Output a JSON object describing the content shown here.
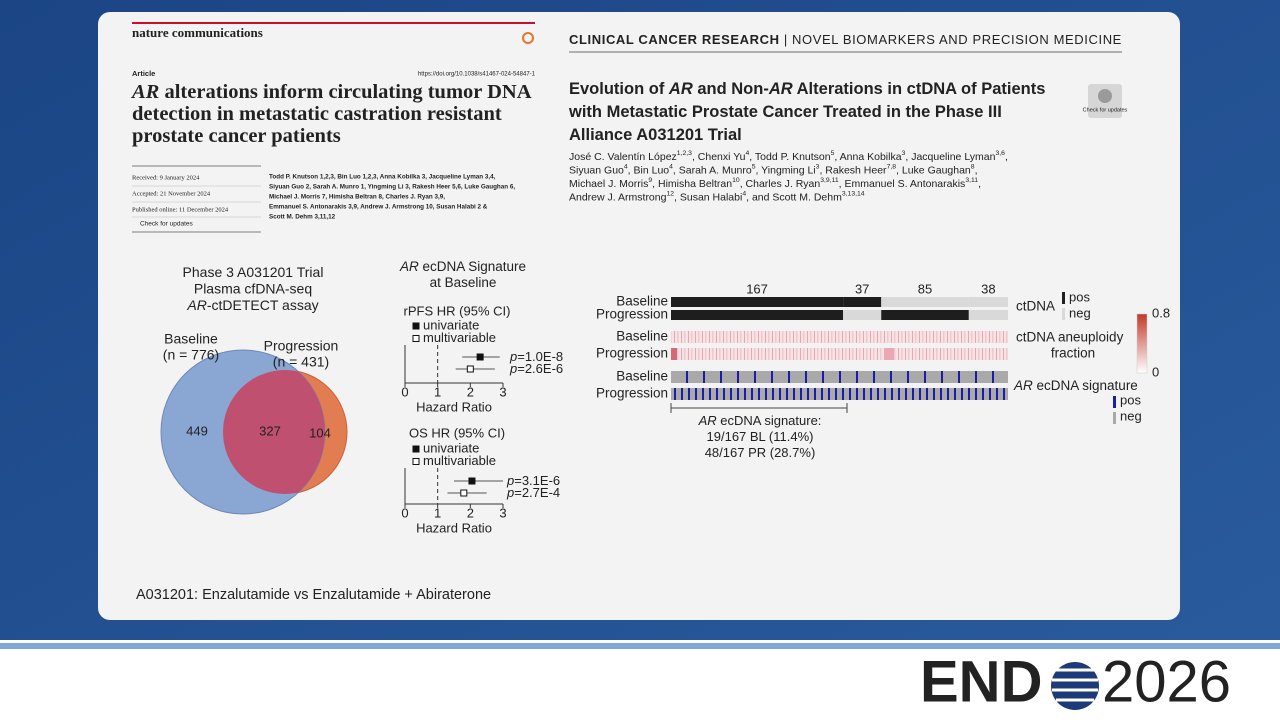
{
  "slide": {
    "left_paper": {
      "journal": "nature communications",
      "article_type": "Article",
      "doi": "https://doi.org/10.1038/s41467-024-54847-1",
      "title": [
        [
          {
            "t": "AR",
            "i": true
          },
          {
            "t": " alterations inform circulating tumor DNA"
          }
        ],
        [
          {
            "t": "detection in metastatic castration resistant"
          }
        ],
        [
          {
            "t": "prostate cancer patients"
          }
        ]
      ],
      "dates": [
        "Received: 9 January 2024",
        "Accepted: 21 November 2024",
        "Published online: 11 December 2024"
      ],
      "check": "Check for updates",
      "authors": [
        "Todd P. Knutson 1,2,3, Bin Luo 1,2,3, Anna Kobilka 3, Jacqueline Lyman 3,4,",
        "Siyuan Guo 2, Sarah A. Munro 1, Yingming Li 3, Rakesh Heer 5,6, Luke Gaughan 6,",
        "Michael J. Morris 7, Himisha Beltran 8, Charles J. Ryan 3,9,",
        "Emmanuel S. Antonarakis 3,9, Andrew J. Armstrong 10, Susan Halabi 2 &",
        "Scott M. Dehm 3,11,12"
      ]
    },
    "right_paper": {
      "header": [
        {
          "t": "CLINICAL CANCER RESEARCH",
          "b": true
        },
        {
          "t": "  |  NOVEL BIOMARKERS AND PRECISION MEDICINE"
        }
      ],
      "title": [
        [
          {
            "t": "Evolution of "
          },
          {
            "t": "AR",
            "i": true
          },
          {
            "t": " and Non-"
          },
          {
            "t": "AR",
            "i": true
          },
          {
            "t": " Alterations in ctDNA of Patients"
          }
        ],
        [
          {
            "t": "with Metastatic Prostate Cancer Treated in the Phase III"
          }
        ],
        [
          {
            "t": "Alliance A031201 Trial"
          }
        ]
      ],
      "check": "Check for updates",
      "authors": [
        [
          {
            "t": "José C. Valentín López",
            "sup": "1,2,3"
          },
          {
            "t": ", Chenxi Yu",
            "sup": "4"
          },
          {
            "t": ", Todd P. Knutson",
            "sup": "5"
          },
          {
            "t": ", Anna Kobilka",
            "sup": "3"
          },
          {
            "t": ", Jacqueline Lyman",
            "sup": "3,6"
          },
          {
            "t": ","
          }
        ],
        [
          {
            "t": "Siyuan Guo",
            "sup": "4"
          },
          {
            "t": ", Bin Luo",
            "sup": "4"
          },
          {
            "t": ", Sarah A. Munro",
            "sup": "5"
          },
          {
            "t": ", Yingming Li",
            "sup": "3"
          },
          {
            "t": ", Rakesh Heer",
            "sup": "7,8"
          },
          {
            "t": ", Luke Gaughan",
            "sup": "8"
          },
          {
            "t": ","
          }
        ],
        [
          {
            "t": "Michael J. Morris",
            "sup": "9"
          },
          {
            "t": ", Himisha Beltran",
            "sup": "10"
          },
          {
            "t": ", Charles J. Ryan",
            "sup": "3,9,11"
          },
          {
            "t": ", Emmanuel S. Antonarakis",
            "sup": "3,11"
          },
          {
            "t": ","
          }
        ],
        [
          {
            "t": "Andrew J. Armstrong",
            "sup": "12"
          },
          {
            "t": ", Susan Halabi",
            "sup": "4"
          },
          {
            "t": ", and Scott M. Dehm",
            "sup": "3,13,14"
          }
        ]
      ]
    },
    "venn": {
      "title": [
        [
          {
            "t": "Phase 3 A031201 Trial"
          }
        ],
        [
          {
            "t": "Plasma cfDNA-seq"
          }
        ],
        [
          {
            "t": "AR",
            "i": true
          },
          {
            "t": "-ctDETECT assay"
          }
        ]
      ],
      "sets": [
        {
          "name": "Baseline",
          "n": "(n = 776)"
        },
        {
          "name": "Progression",
          "n": "(n = 431)"
        }
      ],
      "only_baseline": 449,
      "both": 327,
      "only_progression": 104
    },
    "forest": {
      "title": [
        [
          {
            "t": "AR",
            "i": true
          },
          {
            "t": " ecDNA Signature"
          }
        ],
        [
          {
            "t": "at Baseline"
          }
        ]
      ],
      "plots": [
        {
          "title": "rPFS HR (95% CI)",
          "legend": [
            "univariate",
            "multivariable"
          ],
          "xlim": [
            0,
            3
          ],
          "xticks": [
            0,
            1,
            2,
            3
          ],
          "reference": 1,
          "axis_label": "Hazard Ratio",
          "rows": [
            {
              "hr": 2.3,
              "lo": 1.75,
              "hi": 2.9,
              "p": [
                {
                  "t": "p",
                  "i": true
                },
                {
                  "t": "=1.0E-8"
                }
              ]
            },
            {
              "hr": 2.0,
              "lo": 1.55,
              "hi": 2.75,
              "p": [
                {
                  "t": "p",
                  "i": true
                },
                {
                  "t": "=2.6E-6"
                }
              ]
            }
          ]
        },
        {
          "title": "OS HR (95% CI)",
          "legend": [
            "univariate",
            "multivariable"
          ],
          "xlim": [
            0,
            3
          ],
          "xticks": [
            0,
            1,
            2,
            3
          ],
          "reference": 1,
          "axis_label": "Hazard Ratio",
          "rows": [
            {
              "hr": 2.05,
              "lo": 1.5,
              "hi": 3.0,
              "p": [
                {
                  "t": "p",
                  "i": true
                },
                {
                  "t": "=3.1E-6"
                }
              ]
            },
            {
              "hr": 1.8,
              "lo": 1.3,
              "hi": 2.5,
              "p": [
                {
                  "t": "p",
                  "i": true
                },
                {
                  "t": "=2.7E-4"
                }
              ]
            }
          ]
        }
      ]
    },
    "heatmap": {
      "groups": [
        167,
        37,
        85,
        38
      ],
      "ctdna": {
        "label": "ctDNA",
        "rows": [
          "Baseline",
          "Progression"
        ],
        "status": [
          [
            1,
            1,
            0,
            0
          ],
          [
            1,
            0,
            1,
            0
          ]
        ],
        "legend": [
          "pos",
          "neg"
        ],
        "colors": [
          "#1e1e1e",
          "#d9d9d9"
        ]
      },
      "aneuploidy": {
        "label": [
          "ctDNA aneuploidy",
          "fraction"
        ],
        "rows": [
          "Baseline",
          "Progression"
        ],
        "colorbar_lim": [
          0,
          0.8
        ],
        "colorbar_ticks": [
          0,
          0.8
        ],
        "color": "#c0392b"
      },
      "signature": {
        "label": [
          {
            "t": "AR",
            "i": true
          },
          {
            "t": " ecDNA signature"
          }
        ],
        "rows": [
          "Baseline",
          "Progression"
        ],
        "legend": [
          "pos",
          "neg"
        ],
        "colors": [
          "#1c1ca8",
          "#a9a9a9"
        ]
      },
      "note": [
        [
          {
            "t": "AR",
            "i": true
          },
          {
            "t": " ecDNA signature:"
          }
        ],
        [
          {
            "t": "19/167 BL (11.4%)"
          }
        ],
        [
          {
            "t": "48/167 PR (28.7%)"
          }
        ]
      ]
    },
    "footnote": "A031201: Enzalutamide vs Enzalutamide + Abiraterone",
    "logo": {
      "left": "END",
      "right": "2026"
    }
  }
}
